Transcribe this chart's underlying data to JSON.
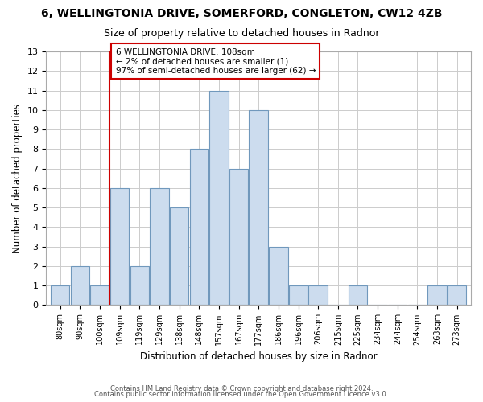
{
  "title": "6, WELLINGTONIA DRIVE, SOMERFORD, CONGLETON, CW12 4ZB",
  "subtitle": "Size of property relative to detached houses in Radnor",
  "xlabel": "Distribution of detached houses by size in Radnor",
  "ylabel": "Number of detached properties",
  "bar_labels": [
    "80sqm",
    "90sqm",
    "100sqm",
    "109sqm",
    "119sqm",
    "129sqm",
    "138sqm",
    "148sqm",
    "157sqm",
    "167sqm",
    "177sqm",
    "186sqm",
    "196sqm",
    "206sqm",
    "215sqm",
    "225sqm",
    "234sqm",
    "244sqm",
    "254sqm",
    "263sqm",
    "273sqm"
  ],
  "bar_values": [
    1,
    2,
    1,
    6,
    2,
    6,
    5,
    8,
    11,
    7,
    10,
    3,
    1,
    1,
    0,
    1,
    0,
    0,
    0,
    1,
    1
  ],
  "ylim": [
    0,
    13
  ],
  "yticks": [
    0,
    1,
    2,
    3,
    4,
    5,
    6,
    7,
    8,
    9,
    10,
    11,
    12,
    13
  ],
  "property_line_index": 3,
  "annotation_title": "6 WELLINGTONIA DRIVE: 108sqm",
  "annotation_line1": "← 2% of detached houses are smaller (1)",
  "annotation_line2": "97% of semi-detached houses are larger (62) →",
  "footer1": "Contains HM Land Registry data © Crown copyright and database right 2024.",
  "footer2": "Contains public sector information licensed under the Open Government Licence v3.0.",
  "bg_color": "#ffffff",
  "bar_color": "#ccdcee",
  "bar_edge_color": "#7098bc",
  "grid_color": "#cccccc",
  "annotation_box_color": "#ffffff",
  "annotation_box_edge": "#cc0000",
  "property_line_color": "#cc0000"
}
